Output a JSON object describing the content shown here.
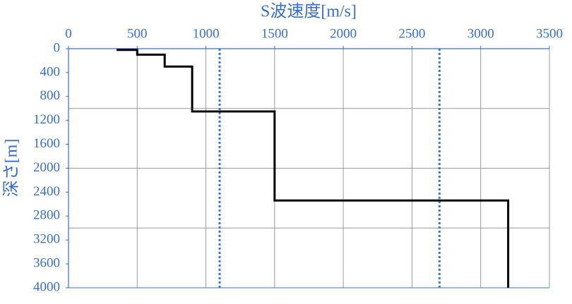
{
  "chart_data": {
    "type": "line",
    "xlabel": "S波速度[m/s]",
    "ylabel": "深さ[m]",
    "x": [
      350,
      500,
      500,
      700,
      700,
      900,
      900,
      1500,
      1500,
      3200,
      3200
    ],
    "values": [
      20,
      20,
      100,
      100,
      300,
      300,
      1050,
      1050,
      2540,
      2540,
      4000
    ],
    "color": "#000000",
    "reference_lines": [
      1100,
      2700
    ],
    "reference_color": "#3a78d8",
    "xlim": [
      0,
      3500
    ],
    "xticks": [
      0,
      500,
      1000,
      1500,
      2000,
      2500,
      3000,
      3500
    ],
    "ylim": [
      0,
      4000
    ],
    "yticks": [
      0,
      400,
      800,
      1200,
      1600,
      2000,
      2400,
      2800,
      3200,
      3600,
      4000
    ],
    "y_inverted": true,
    "ygrid": [
      1000,
      2000,
      3000
    ],
    "grid": true,
    "axis_color": "#3a6fc4"
  }
}
